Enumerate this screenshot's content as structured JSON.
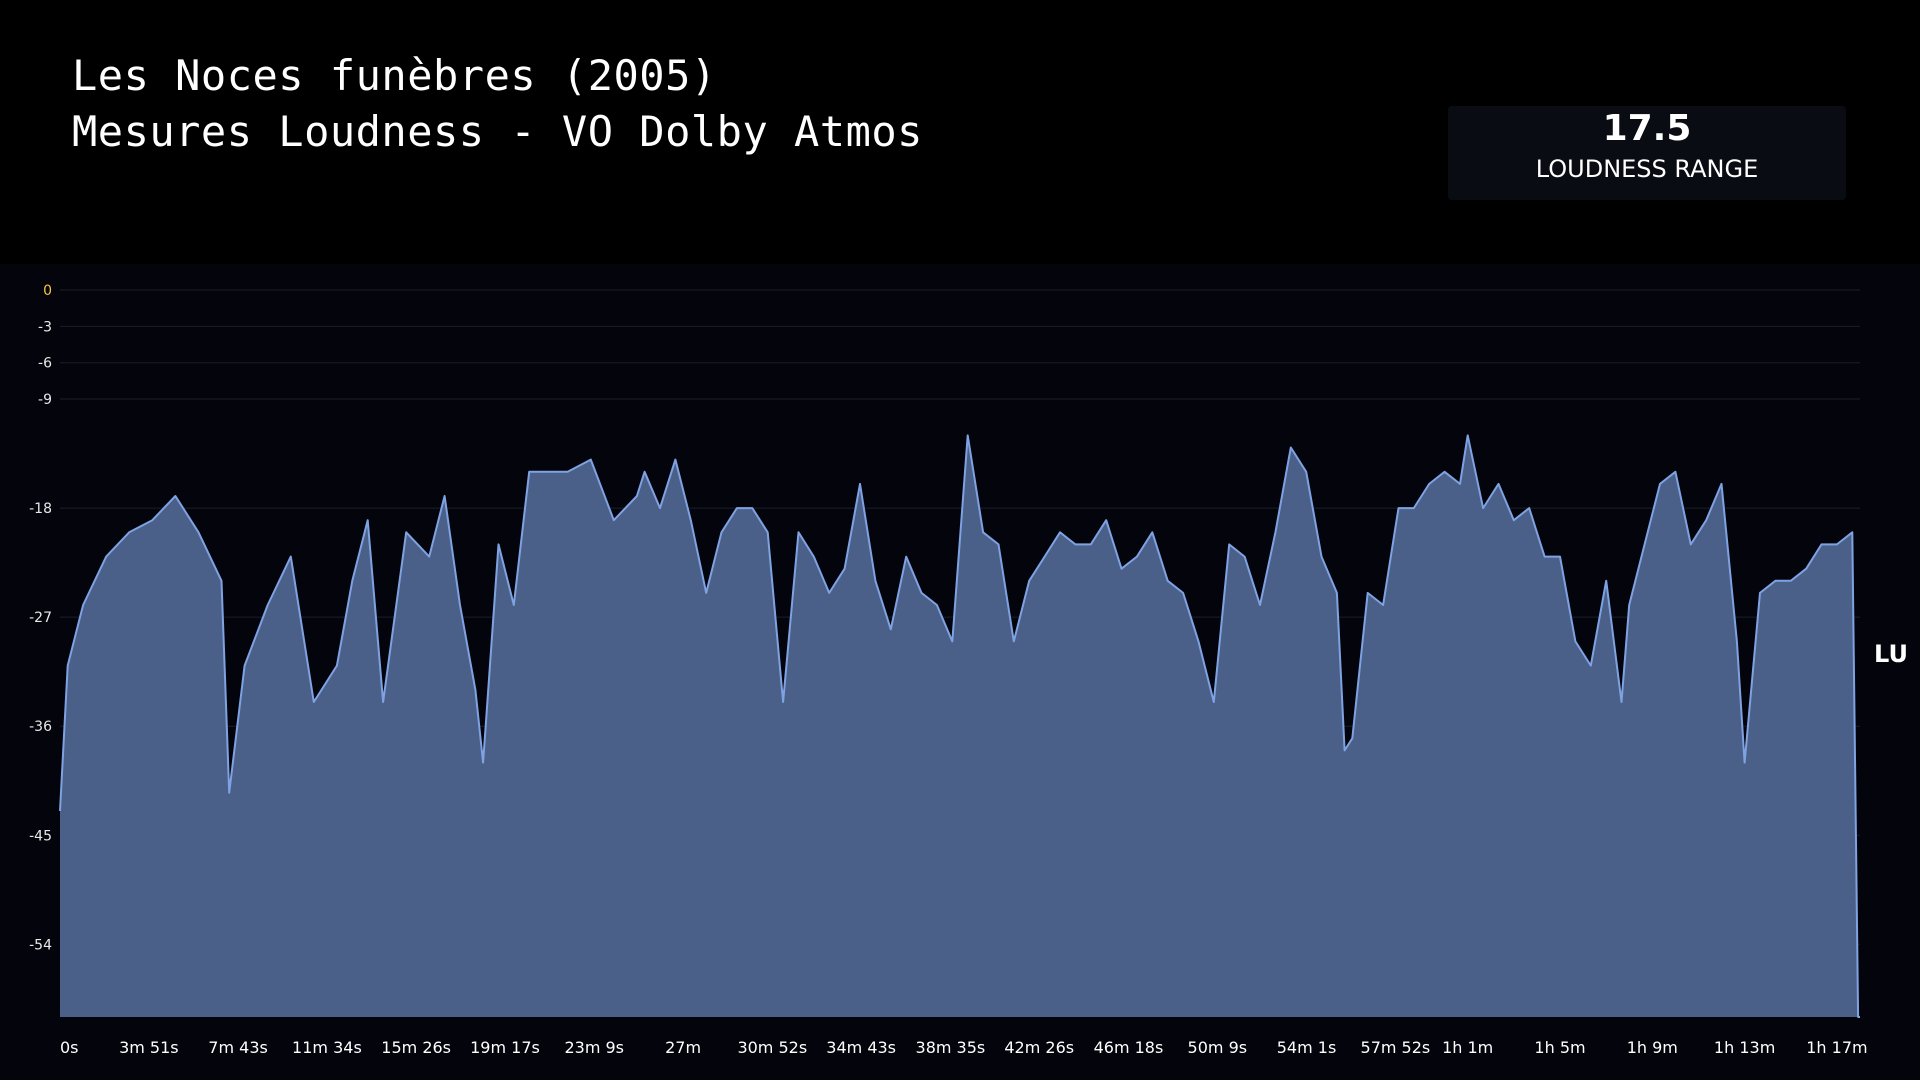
{
  "header": {
    "title_line1": "Les Noces funèbres (2005)",
    "title_line2": "Mesures Loudness - VO Dolby Atmos"
  },
  "stat": {
    "value": "17.5",
    "label": "LOUDNESS RANGE"
  },
  "chart_data": {
    "type": "area",
    "title": "",
    "xlabel": "",
    "ylabel": "LU",
    "unit_label": "LU",
    "grid": true,
    "ylim": [
      -60,
      0
    ],
    "xlim": [
      0,
      4680
    ],
    "y_ticks": [
      0,
      -3,
      -6,
      -9,
      -18,
      -27,
      -36,
      -45,
      -54
    ],
    "x_tick_labels": [
      "0s",
      "3m 51s",
      "7m 43s",
      "11m 34s",
      "15m 26s",
      "19m 17s",
      "23m 9s",
      "27m",
      "30m 52s",
      "34m 43s",
      "38m 35s",
      "42m 26s",
      "46m 18s",
      "50m 9s",
      "54m 1s",
      "57m 52s",
      "1h 1m",
      "1h 5m",
      "1h 9m",
      "1h 13m",
      "1h 17m"
    ],
    "x_tick_seconds": [
      0,
      231,
      463,
      694,
      926,
      1157,
      1389,
      1620,
      1852,
      2083,
      2315,
      2546,
      2778,
      3009,
      3241,
      3472,
      3660,
      3900,
      4140,
      4380,
      4620
    ],
    "series": [
      {
        "color": "#7fa2e3",
        "fill": "#4a6089",
        "x": [
          0,
          20,
          60,
          120,
          180,
          240,
          300,
          360,
          420,
          440,
          480,
          540,
          600,
          660,
          720,
          760,
          800,
          840,
          900,
          960,
          1000,
          1040,
          1080,
          1100,
          1140,
          1180,
          1220,
          1260,
          1320,
          1380,
          1440,
          1500,
          1520,
          1560,
          1600,
          1640,
          1680,
          1720,
          1760,
          1800,
          1840,
          1880,
          1920,
          1960,
          2000,
          2040,
          2080,
          2120,
          2160,
          2200,
          2240,
          2280,
          2320,
          2360,
          2400,
          2440,
          2480,
          2520,
          2560,
          2600,
          2640,
          2680,
          2720,
          2760,
          2800,
          2840,
          2880,
          2920,
          2960,
          3000,
          3040,
          3080,
          3120,
          3160,
          3200,
          3240,
          3280,
          3320,
          3340,
          3360,
          3400,
          3440,
          3480,
          3520,
          3560,
          3600,
          3640,
          3660,
          3700,
          3740,
          3780,
          3820,
          3860,
          3900,
          3940,
          3980,
          4020,
          4060,
          4080,
          4120,
          4160,
          4200,
          4240,
          4280,
          4320,
          4360,
          4380,
          4420,
          4460,
          4500,
          4540,
          4580,
          4620,
          4660,
          4675,
          4680
        ],
        "y": [
          -43,
          -31,
          -26,
          -22,
          -20,
          -19,
          -17,
          -20,
          -24,
          -41.5,
          -31,
          -26,
          -22,
          -34,
          -31,
          -24,
          -19,
          -34,
          -20,
          -22,
          -17,
          -26,
          -33,
          -39,
          -21,
          -26,
          -15,
          -15,
          -15,
          -14,
          -19,
          -17,
          -15,
          -18,
          -14,
          -19,
          -25,
          -20,
          -18,
          -18,
          -20,
          -34,
          -20,
          -22,
          -25,
          -23,
          -16,
          -24,
          -28,
          -22,
          -25,
          -26,
          -29,
          -12,
          -20,
          -21,
          -29,
          -24,
          -22,
          -20,
          -21,
          -21,
          -19,
          -23,
          -22,
          -20,
          -24,
          -25,
          -29,
          -34,
          -21,
          -22,
          -26,
          -20,
          -13,
          -15,
          -22,
          -25,
          -38,
          -37,
          -25,
          -26,
          -18,
          -18,
          -16,
          -15,
          -16,
          -12,
          -18,
          -16,
          -19,
          -18,
          -22,
          -22,
          -29,
          -31,
          -24,
          -34,
          -26,
          -21,
          -16,
          -15,
          -21,
          -19,
          -16,
          -29,
          -39,
          -25,
          -24,
          -24,
          -23,
          -21,
          -21,
          -20,
          -60,
          -60
        ]
      }
    ]
  }
}
